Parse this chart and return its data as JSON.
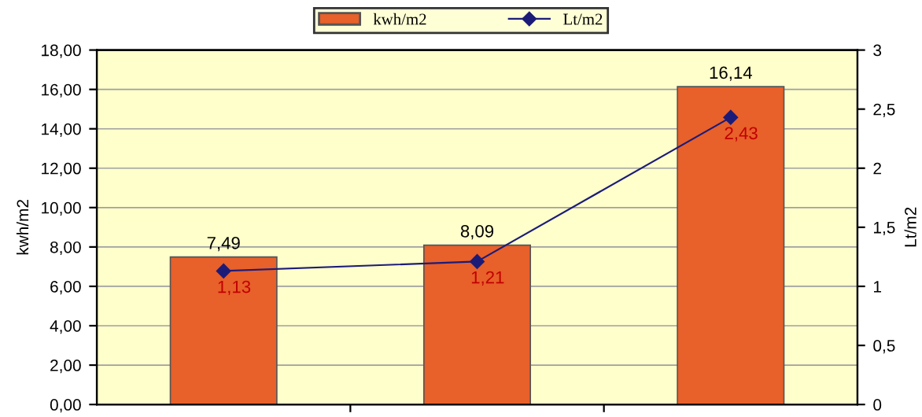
{
  "chart_data": {
    "type": "bar",
    "categories": [
      null,
      null,
      null
    ],
    "series": [
      {
        "name": "kwh/m2",
        "color": "#e8602a",
        "values": [
          7.49,
          8.09,
          16.14
        ],
        "value_labels": [
          "7,49",
          "8,09",
          "16,14"
        ]
      },
      {
        "name": "Lt/m2",
        "type": "line",
        "axis": "y2",
        "color": "#1c1c78",
        "values": [
          1.13,
          1.21,
          2.43
        ],
        "value_labels": [
          "1,13",
          "1,21",
          "2,43"
        ],
        "marker": "diamond"
      }
    ],
    "ylabel": "kwh/m2",
    "y2label": "Lt/m2",
    "ylim": [
      0,
      18
    ],
    "yticks": [
      {
        "value": 0,
        "label": "0,00"
      },
      {
        "value": 2,
        "label": "2,00"
      },
      {
        "value": 4,
        "label": "4,00"
      },
      {
        "value": 6,
        "label": "6,00"
      },
      {
        "value": 8,
        "label": "8,00"
      },
      {
        "value": 10,
        "label": "10,00"
      },
      {
        "value": 12,
        "label": "12,00"
      },
      {
        "value": 14,
        "label": "14,00"
      },
      {
        "value": 16,
        "label": "16,00"
      },
      {
        "value": 18,
        "label": "18,00"
      }
    ],
    "y2lim": [
      0,
      3
    ],
    "y2ticks": [
      0,
      {
        "value": 0.5,
        "label": "0,5"
      },
      1,
      {
        "value": 1.5,
        "label": "1,5"
      },
      2,
      {
        "value": 2.5,
        "label": "2,5"
      },
      3
    ],
    "grid": "y",
    "legend": "top"
  }
}
